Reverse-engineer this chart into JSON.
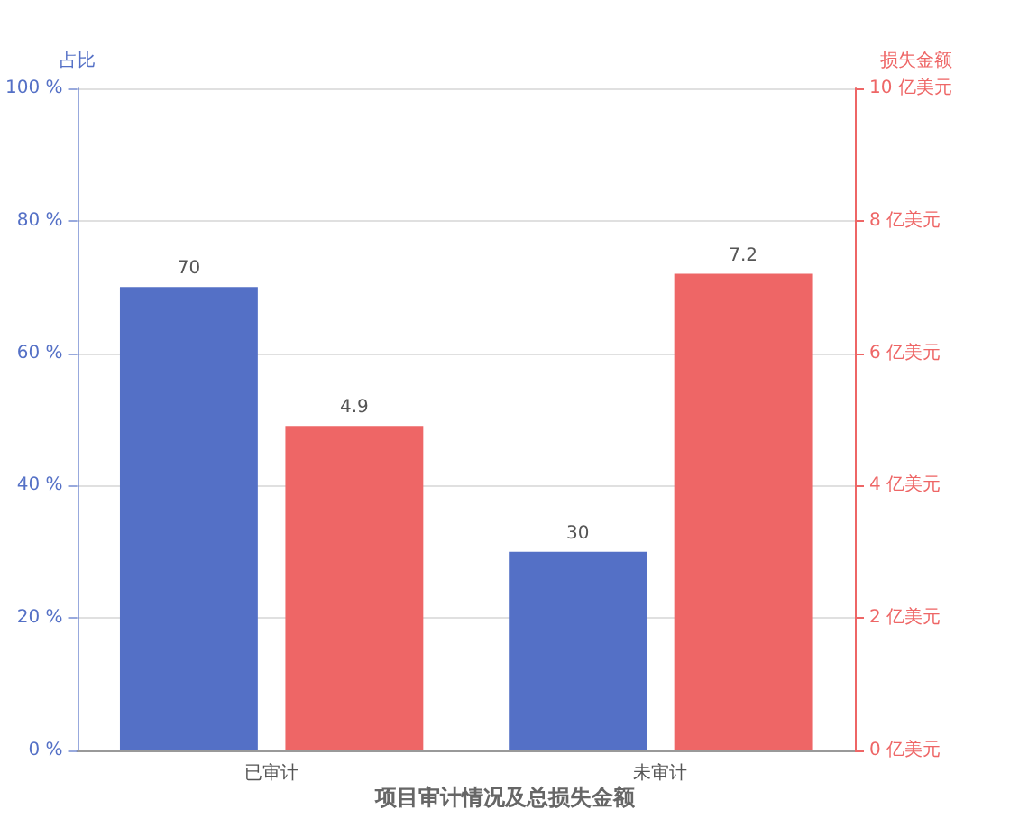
{
  "chart_data": {
    "type": "bar",
    "title": "项目审计情况及总损失金额",
    "ylabel": "占比",
    "y2label": "损失金额",
    "categories": [
      "已审计",
      "未审计"
    ],
    "series": [
      {
        "color": "#5470c6",
        "values": [
          70,
          30
        ]
      },
      {
        "color": "#ee6666",
        "values": [
          4.9,
          7.2
        ],
        "axis": "y2"
      }
    ],
    "ylim": [
      0,
      100
    ],
    "yticks": [
      {
        "value": 0,
        "label": "0 %"
      },
      {
        "value": 20,
        "label": "20 %"
      },
      {
        "value": 40,
        "label": "40 %"
      },
      {
        "value": 60,
        "label": "60 %"
      },
      {
        "value": 80,
        "label": "80 %"
      },
      {
        "value": 100,
        "label": "100 %"
      }
    ],
    "y2lim": [
      0,
      10
    ],
    "y2ticks": [
      {
        "value": 0,
        "label": "0 亿美元"
      },
      {
        "value": 2,
        "label": "2 亿美元"
      },
      {
        "value": 4,
        "label": "4 亿美元"
      },
      {
        "value": 6,
        "label": "6 亿美元"
      },
      {
        "value": 8,
        "label": "8 亿美元"
      },
      {
        "value": 10,
        "label": "10 亿美元"
      }
    ],
    "grid": "y",
    "data_labels": true
  }
}
